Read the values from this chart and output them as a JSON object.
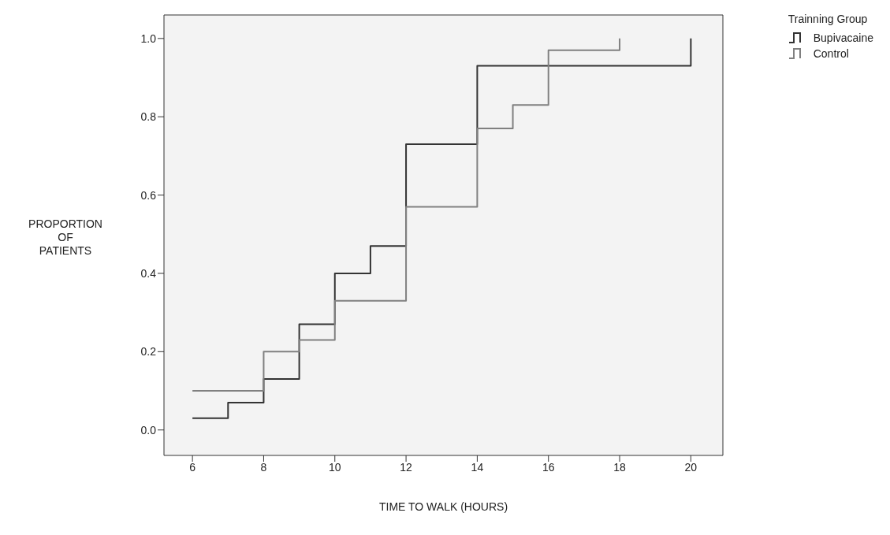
{
  "chart_data": {
    "type": "step",
    "xlabel": "TIME TO WALK (HOURS)",
    "ylabel": "PROPORTION OF PATIENTS",
    "legend_title": "Trainning Group",
    "legend": "top right",
    "series": [
      {
        "name": "Bupivacaine",
        "color": "#333333",
        "x": [
          6,
          7,
          8,
          9,
          10,
          11,
          12,
          14,
          20
        ],
        "values": [
          0.03,
          0.07,
          0.13,
          0.27,
          0.4,
          0.47,
          0.73,
          0.93,
          1.0
        ]
      },
      {
        "name": "Control",
        "color": "#808080",
        "x": [
          6,
          8,
          9,
          10,
          12,
          14,
          15,
          16,
          18
        ],
        "values": [
          0.1,
          0.2,
          0.23,
          0.33,
          0.57,
          0.77,
          0.83,
          0.97,
          1.0
        ]
      }
    ],
    "xlim": [
      5.2,
      20.9
    ],
    "xticks": [
      6,
      8,
      10,
      12,
      14,
      16,
      18,
      20
    ],
    "ylim": [
      -0.065,
      1.06
    ],
    "yticks": [
      {
        "value": 0,
        "label": "0.0"
      },
      0.2,
      0.4,
      0.6,
      0.8,
      {
        "value": 1,
        "label": "1.0"
      }
    ],
    "grid": false,
    "marker": "none",
    "line_style": "solid"
  }
}
